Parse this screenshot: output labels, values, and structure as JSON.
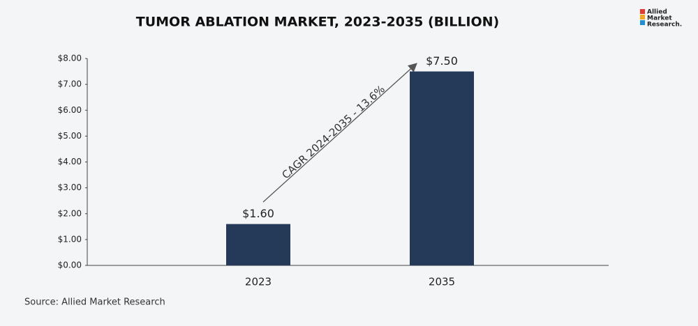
{
  "chart_data": {
    "type": "bar",
    "title": "TUMOR ABLATION MARKET, 2023-2035 (BILLION)",
    "categories": [
      "2023",
      "2035"
    ],
    "values": [
      1.6,
      7.5
    ],
    "value_labels": [
      "$1.60",
      "$7.50"
    ],
    "color": "#253a59",
    "ylim": [
      0,
      8
    ],
    "yticks": [
      {
        "value": 0,
        "label": "$0.00"
      },
      {
        "value": 1,
        "label": "$1.00"
      },
      {
        "value": 2,
        "label": "$2.00"
      },
      {
        "value": 3,
        "label": "$3.00"
      },
      {
        "value": 4,
        "label": "$4.00"
      },
      {
        "value": 5,
        "label": "$5.00"
      },
      {
        "value": 6,
        "label": "$6.00"
      },
      {
        "value": 7,
        "label": "$7.00"
      },
      {
        "value": 8,
        "label": "$8.00"
      }
    ],
    "grid": false,
    "annotation": "CAGR 2024-2035 - 13.6%",
    "source": "Source: Allied Market Research"
  },
  "logo": {
    "line1": "Allied",
    "line2": "Market",
    "line3": "Research."
  }
}
